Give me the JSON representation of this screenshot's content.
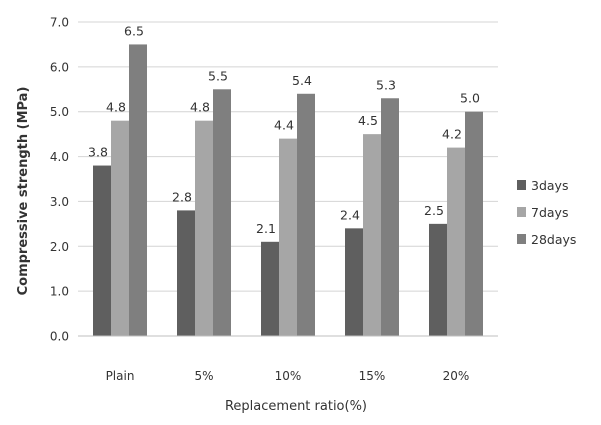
{
  "chart_data": {
    "type": "bar",
    "title": "",
    "xlabel": "Replacement ratio(%)",
    "ylabel": "Compressive strength (MPa)",
    "ylim": [
      0,
      7
    ],
    "yticks": [
      "0.0",
      "1.0",
      "2.0",
      "3.0",
      "4.0",
      "5.0",
      "6.0",
      "7.0"
    ],
    "grid": true,
    "legend": "right",
    "categories": [
      "Plain",
      "5%",
      "10%",
      "15%",
      "20%"
    ],
    "series": [
      {
        "name": "3days",
        "color": "#5f5f5f",
        "values": [
          3.8,
          2.8,
          2.1,
          2.4,
          2.5
        ],
        "labels": [
          "3.8",
          "2.8",
          "2.1",
          "2.4",
          "2.5"
        ]
      },
      {
        "name": "7days",
        "color": "#a6a6a6",
        "values": [
          4.8,
          4.8,
          4.4,
          4.5,
          4.2
        ],
        "labels": [
          "4.8",
          "4.8",
          "4.4",
          "4.5",
          "4.2"
        ]
      },
      {
        "name": "28days",
        "color": "#7f7f7f",
        "values": [
          6.5,
          5.5,
          5.4,
          5.3,
          5.0
        ],
        "labels": [
          "6.5",
          "5.5",
          "5.4",
          "5.3",
          "5.0"
        ]
      }
    ]
  }
}
